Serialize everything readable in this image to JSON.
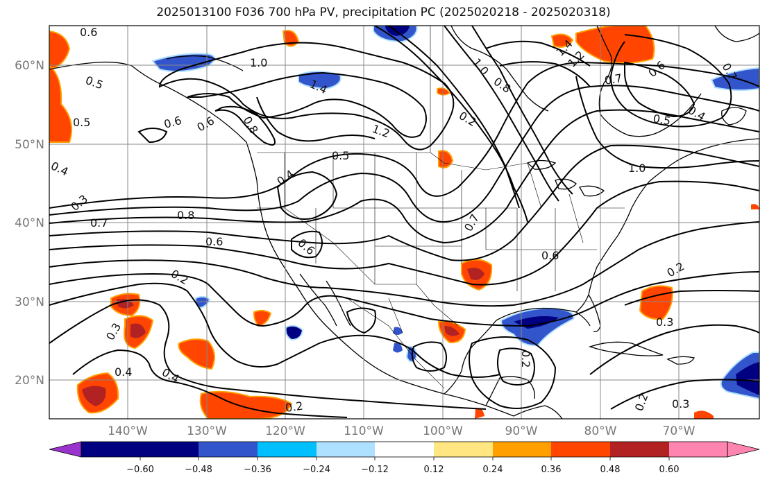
{
  "title": "2025013100 F036 700 hPa PV, precipitation PC (2025020218 - 2025020318)",
  "map": {
    "lon_ticks": [
      "140°W",
      "130°W",
      "120°W",
      "110°W",
      "100°W",
      "90°W",
      "80°W",
      "70°W"
    ],
    "lat_ticks": [
      "60°N",
      "50°N",
      "40°N",
      "30°N",
      "20°N"
    ],
    "grid": true,
    "contour_labels": [
      {
        "text": "0.6"
      },
      {
        "text": "1.0"
      },
      {
        "text": "0.5"
      },
      {
        "text": "1.4"
      },
      {
        "text": "0.5"
      },
      {
        "text": "0.6"
      },
      {
        "text": "0.6"
      },
      {
        "text": "1.2"
      },
      {
        "text": "0.4"
      },
      {
        "text": "0.5"
      },
      {
        "text": "0.4"
      },
      {
        "text": "0.3"
      },
      {
        "text": "0.7"
      },
      {
        "text": "0.8"
      },
      {
        "text": "0.6"
      },
      {
        "text": "0.6"
      },
      {
        "text": "0.2"
      },
      {
        "text": "0.3"
      },
      {
        "text": "0.4"
      },
      {
        "text": "0.4"
      },
      {
        "text": "0.2"
      },
      {
        "text": "0.2"
      },
      {
        "text": "0.8"
      },
      {
        "text": "1.0"
      },
      {
        "text": "0.7"
      },
      {
        "text": "0.6"
      },
      {
        "text": "0.5"
      },
      {
        "text": "0.4"
      },
      {
        "text": "1.0"
      },
      {
        "text": "0.6"
      },
      {
        "text": "0.2"
      },
      {
        "text": "0.3"
      },
      {
        "text": "0.3"
      },
      {
        "text": "0.2"
      },
      {
        "text": "1.4"
      },
      {
        "text": "1.2"
      },
      {
        "text": "0.7"
      },
      {
        "text": "0.2"
      },
      {
        "text": "0.8"
      },
      {
        "text": "0.7"
      }
    ]
  },
  "colorbar": {
    "ticks": [
      "−0.60",
      "−0.48",
      "−0.36",
      "−0.24",
      "−0.12",
      "0.12",
      "0.24",
      "0.36",
      "0.48",
      "0.60"
    ],
    "colors": [
      "#9933cc",
      "#000080",
      "#3355cc",
      "#00bfff",
      "#aee0ff",
      "#ffffff",
      "#ffe680",
      "#ffa000",
      "#ff4500",
      "#b22222",
      "#ff85b0"
    ]
  }
}
